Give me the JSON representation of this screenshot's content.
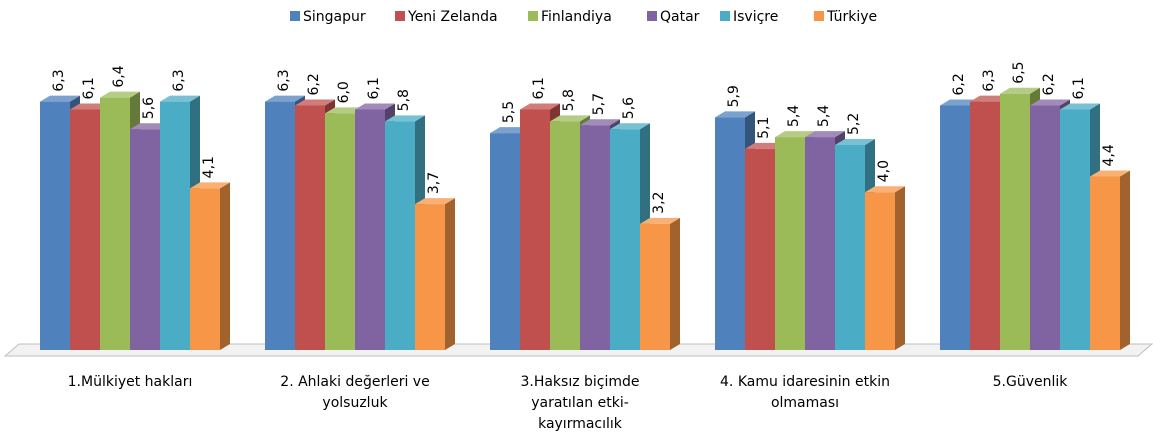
{
  "chart_data": {
    "type": "bar3d",
    "categories": [
      "1.Mülkiyet hakları",
      "2. Ahlaki değerleri ve yolsuzluk",
      "3.Haksız biçimde yaratılan etki-kayırmacılık",
      "4. Kamu idaresinin etkin olmaması",
      "5.Güvenlik"
    ],
    "ylim": [
      0,
      7
    ],
    "series": [
      {
        "name": "Singapur",
        "color": "#4f81bd",
        "values": [
          6.3,
          6.3,
          5.5,
          5.9,
          6.2
        ],
        "value_labels": [
          "6,3",
          "6,3",
          "5,5",
          "5,9",
          "6,2"
        ]
      },
      {
        "name": "Yeni Zelanda",
        "color": "#c0504d",
        "values": [
          6.1,
          6.2,
          6.1,
          5.1,
          6.3
        ],
        "value_labels": [
          "6,1",
          "6,2",
          "6,1",
          "5,1",
          "6,3"
        ]
      },
      {
        "name": "Finlandiya",
        "color": "#9bbb59",
        "values": [
          6.4,
          6.0,
          5.8,
          5.4,
          6.5
        ],
        "value_labels": [
          "6,4",
          "6,0",
          "5,8",
          "5,4",
          "6,5"
        ]
      },
      {
        "name": "Qatar",
        "color": "#8064a2",
        "values": [
          5.6,
          6.1,
          5.7,
          5.4,
          6.2
        ],
        "value_labels": [
          "5,6",
          "6,1",
          "5,7",
          "5,4",
          "6,2"
        ]
      },
      {
        "name": "Isviçre",
        "color": "#4bacc6",
        "values": [
          6.3,
          5.8,
          5.6,
          5.2,
          6.1
        ],
        "value_labels": [
          "6,3",
          "5,8",
          "5,6",
          "5,2",
          "6,1"
        ]
      },
      {
        "name": "Türkiye",
        "color": "#f79646",
        "values": [
          4.1,
          3.7,
          3.2,
          4.0,
          4.4
        ],
        "value_labels": [
          "4,1",
          "3,7",
          "3,2",
          "4,0",
          "4,4"
        ]
      }
    ]
  }
}
